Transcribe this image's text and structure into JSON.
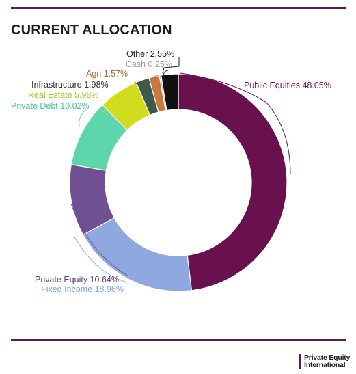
{
  "header": {
    "title": "CURRENT ALLOCATION"
  },
  "chart_data": {
    "type": "pie",
    "style": "donut",
    "title": "CURRENT ALLOCATION",
    "slices": [
      {
        "name": "Public Equities",
        "value": 48.05,
        "label": "Public Equities 48.05%",
        "color": "#69114f",
        "label_color": "#69114f"
      },
      {
        "name": "Fixed Income",
        "value": 18.96,
        "label": "Fixed Income 18.96%",
        "color": "#8fa9e0",
        "label_color": "#7f9fd6"
      },
      {
        "name": "Private Equity",
        "value": 10.64,
        "label": "Private Equity 10.64%",
        "color": "#704f93",
        "label_color": "#5e3f7f"
      },
      {
        "name": "Private Debt",
        "value": 10.02,
        "label": "Private Debt 10.02%",
        "color": "#5dd6ac",
        "label_color": "#3fc495"
      },
      {
        "name": "Real Estate",
        "value": 5.98,
        "label": "Real Estate 5.98%",
        "color": "#d2dc1e",
        "label_color": "#b6c20f"
      },
      {
        "name": "Infrastructure",
        "value": 1.98,
        "label": "Infrastructure 1.98%",
        "color": "#3f5a4a",
        "label_color": "#333333"
      },
      {
        "name": "Agri",
        "value": 1.57,
        "label": "Agri 1.57%",
        "color": "#c8793c",
        "label_color": "#b06a33"
      },
      {
        "name": "Cash",
        "value": 0.25,
        "label": "Cash 0.25%",
        "color": "#b8b8b8",
        "label_color": "#9a9a9a"
      },
      {
        "name": "Other",
        "value": 2.55,
        "label": "Other 2.55%",
        "color": "#111111",
        "label_color": "#222222"
      }
    ]
  },
  "footer": {
    "brand_line1": "Private Equity",
    "brand_line2": "International",
    "brand_color": "#5b1b4e"
  }
}
